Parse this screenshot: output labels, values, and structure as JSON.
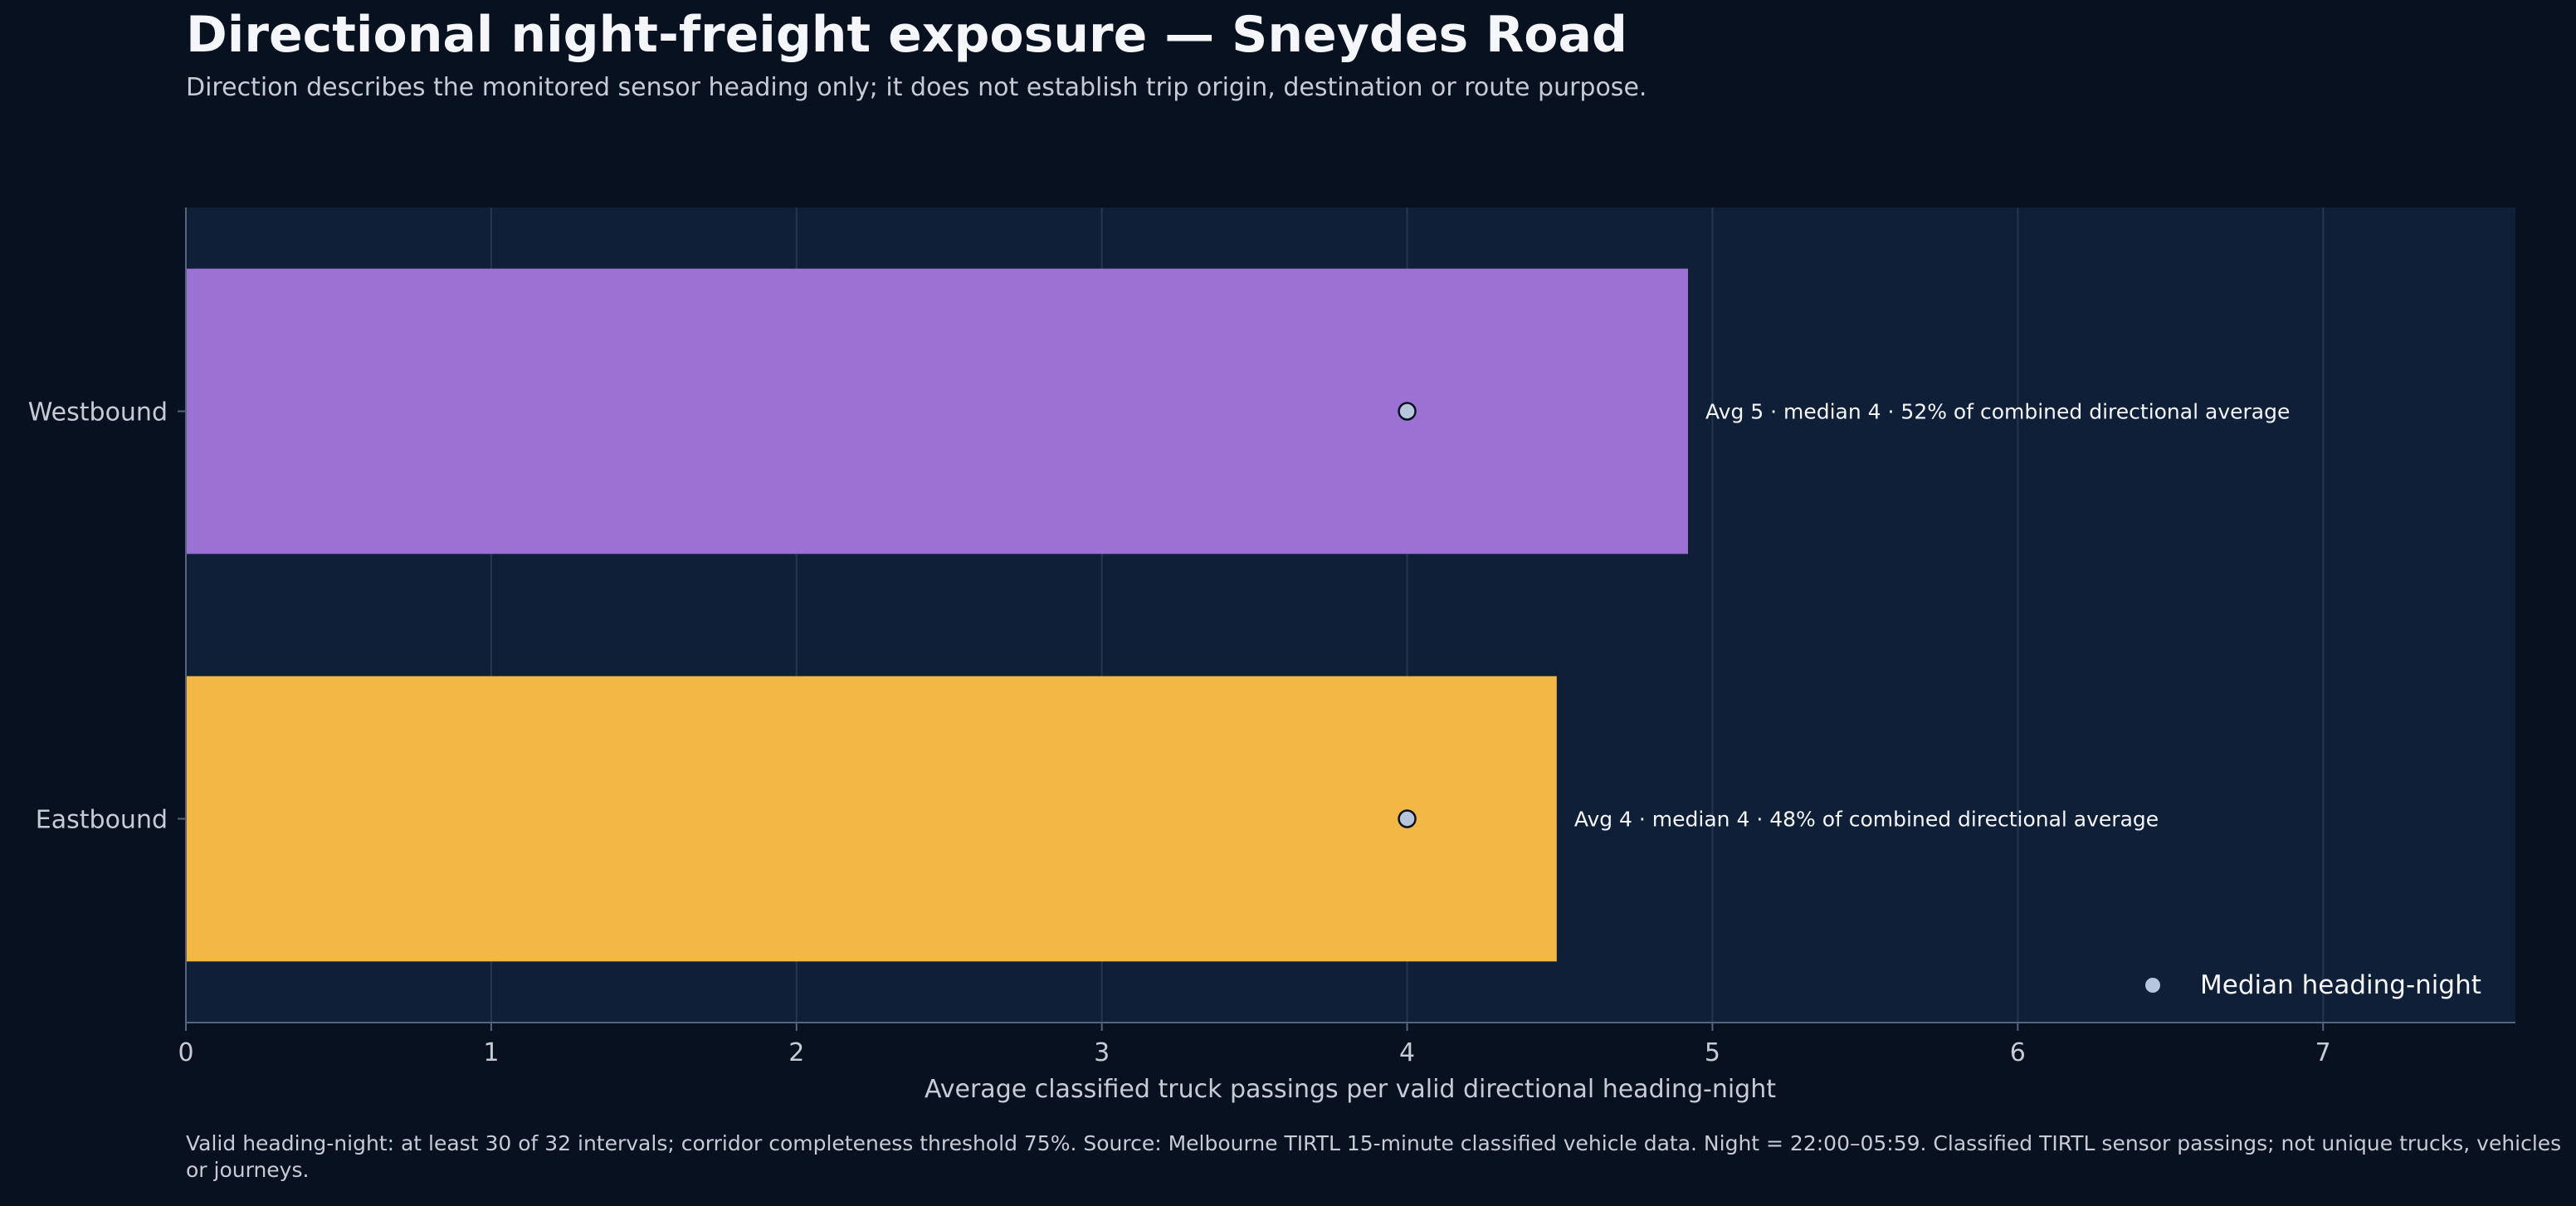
{
  "colors": {
    "page_background": "#08111f",
    "plot_background": "#0f1f38",
    "grid": "#253652",
    "axis": "#54657e",
    "text_primary": "#f4f6fa",
    "text_muted": "#c5ccd6",
    "marker_fill": "#b7c6dd",
    "marker_stroke": "#0a1220"
  },
  "chart_data": {
    "type": "bar",
    "orientation": "horizontal",
    "title": "Directional night-freight exposure — Sneydes Road",
    "subtitle": "Direction describes the monitored sensor heading only; it does not establish trip origin, destination or route purpose.",
    "xlabel": "Average classified truck passings per valid directional heading-night",
    "ylabel": "",
    "xlim": [
      0,
      7.63
    ],
    "xticks": [
      "0",
      "1",
      "2",
      "3",
      "4",
      "5",
      "6",
      "7"
    ],
    "grid": true,
    "categories": [
      "Westbound",
      "Eastbound"
    ],
    "values": [
      4.92,
      4.49
    ],
    "medians": [
      4,
      4
    ],
    "bar_colors": [
      "#9b71d3",
      "#f3b743"
    ],
    "bar_labels": [
      "Avg 5 · median 4 · 52% of combined directional average",
      "Avg 4 · median 4 · 48% of combined directional average"
    ],
    "legend": {
      "placement": "bottom-right",
      "entries": [
        "Median heading-night"
      ]
    },
    "footnote": "Valid heading-night: at least 30 of 32 intervals; corridor completeness threshold 75%. Source: Melbourne TIRTL 15-minute classified vehicle data. Night = 22:00–05:59. Classified TIRTL sensor passings; not unique trucks, vehicles or journeys."
  }
}
